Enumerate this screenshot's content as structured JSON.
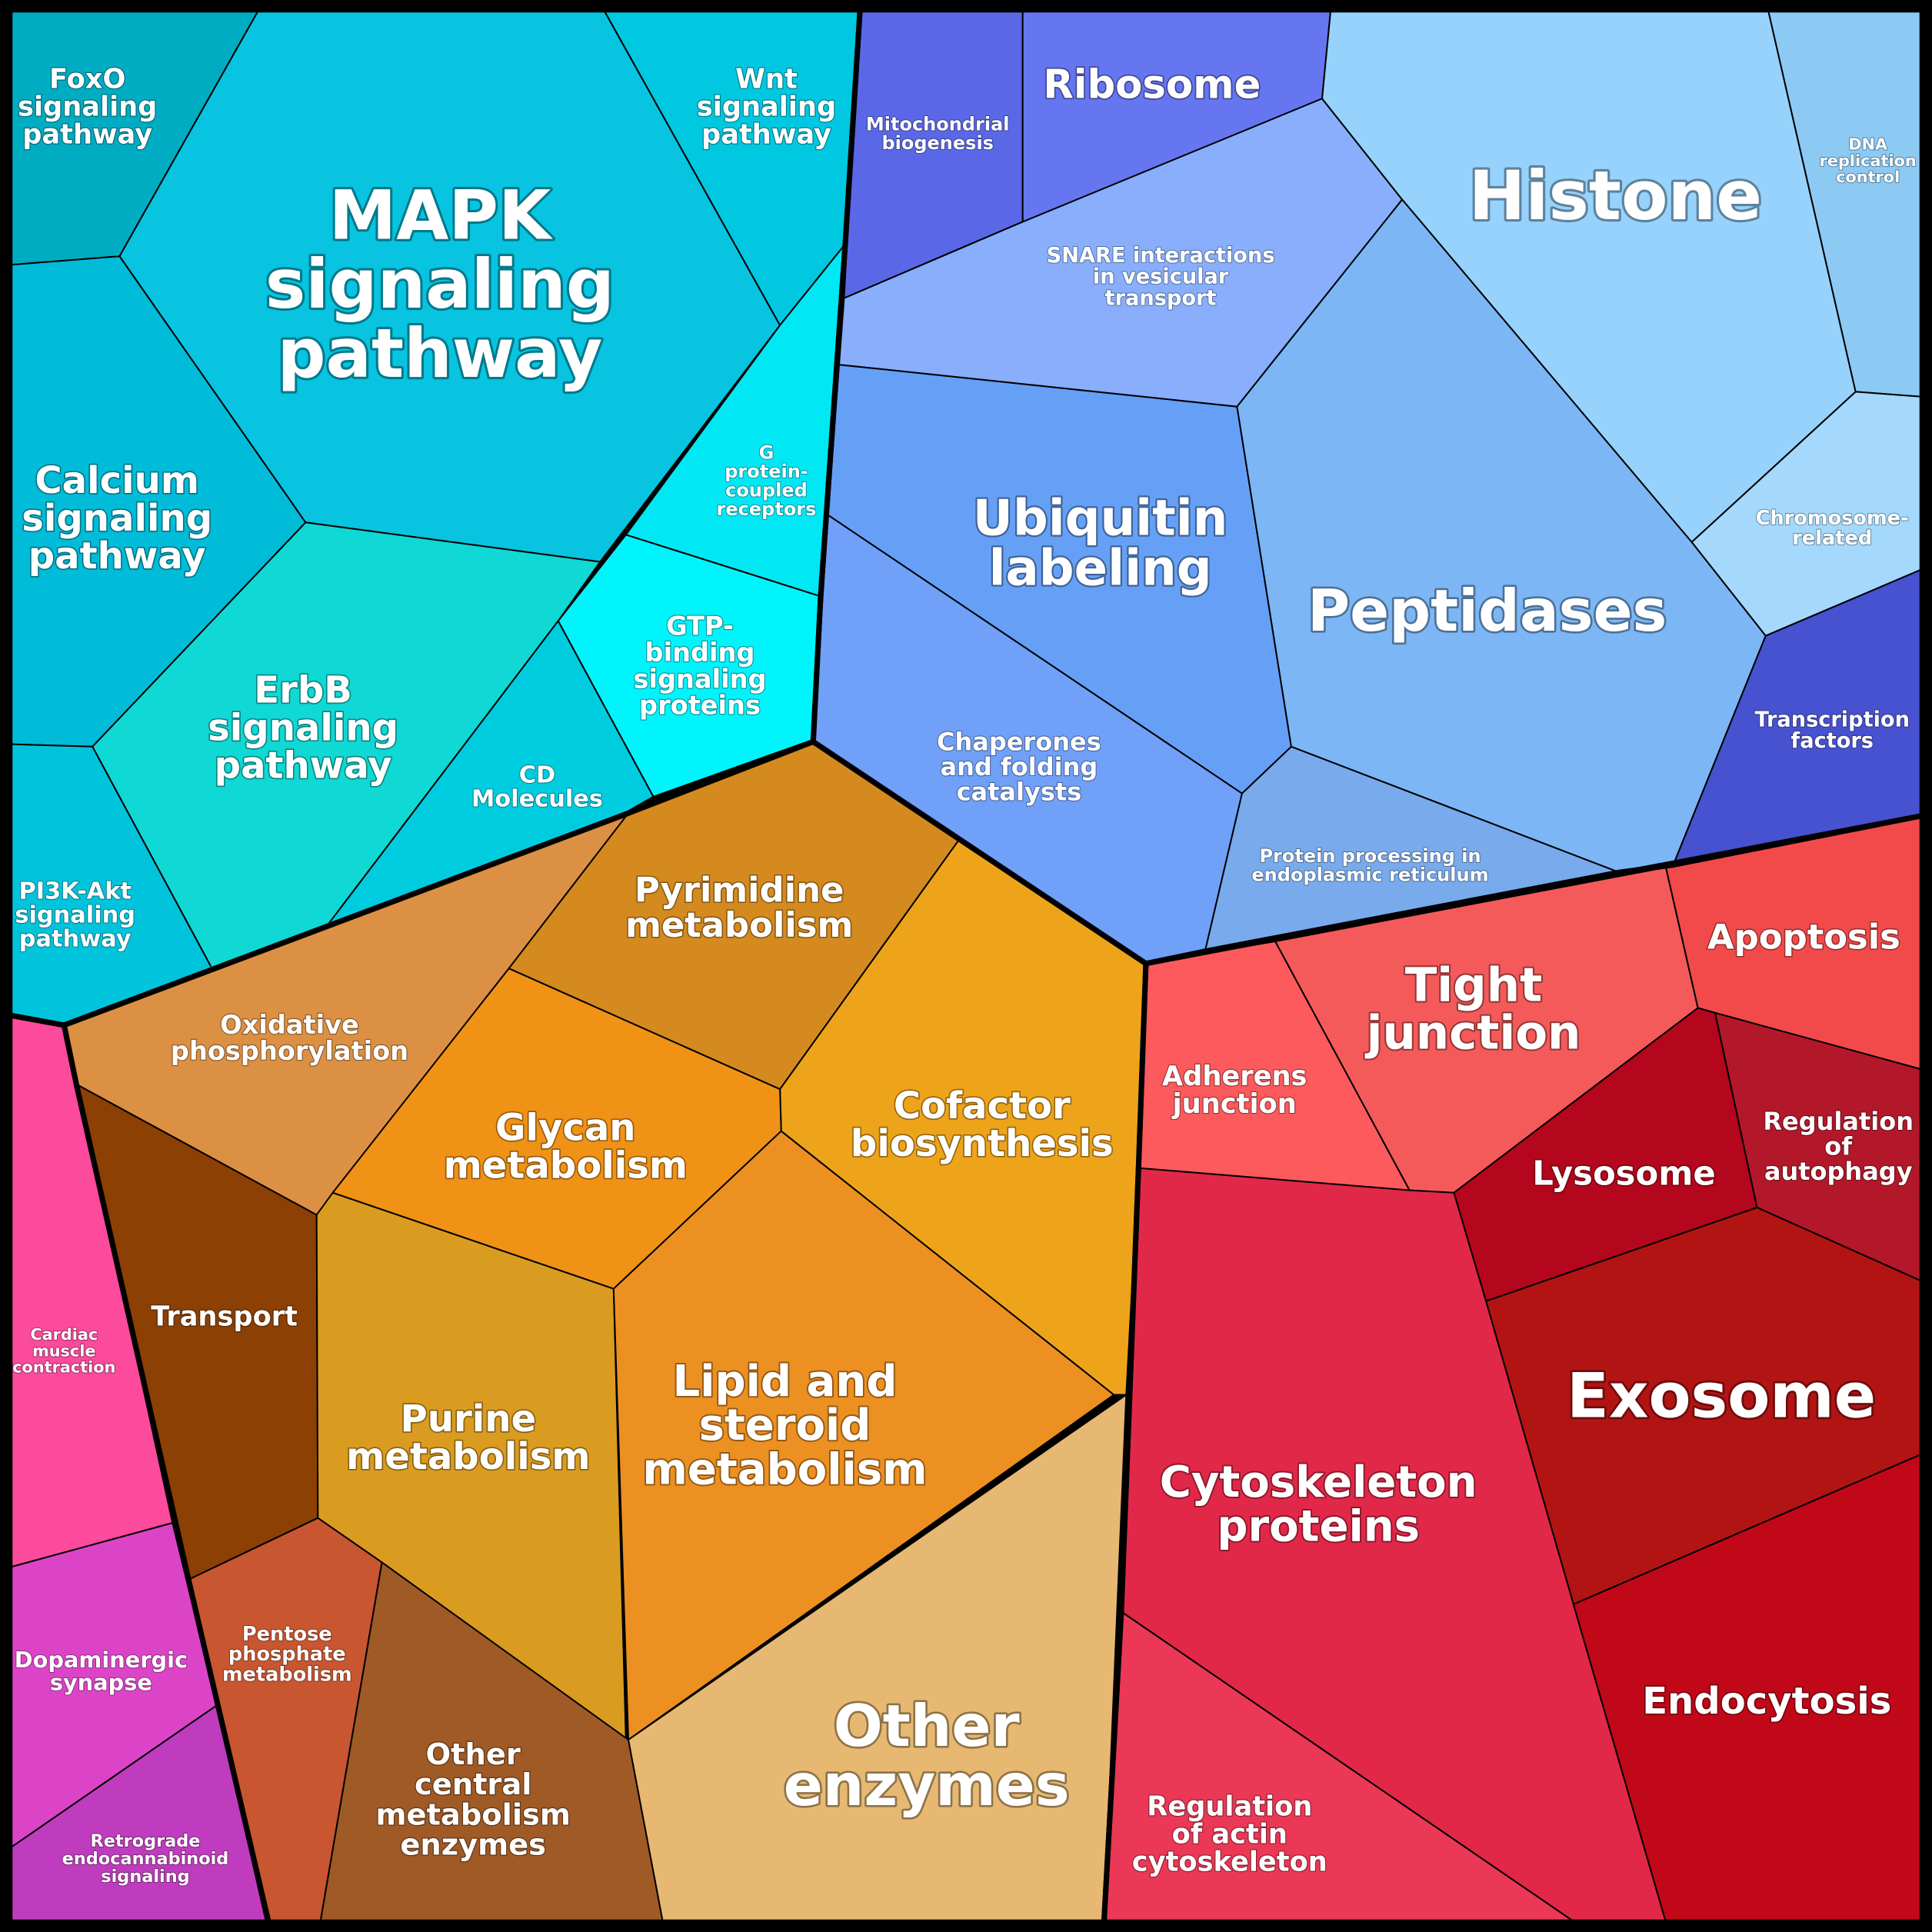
{
  "groups": [
    {
      "id": "signaling",
      "color": "#00bcd4"
    },
    {
      "id": "protein-handling",
      "color": "#6a8ff0"
    },
    {
      "id": "metabolism",
      "color": "#e6951f"
    },
    {
      "id": "cellular-structure",
      "color": "#d8283c"
    },
    {
      "id": "neuro-muscle",
      "color": "#e444a4"
    }
  ],
  "cells": [
    {
      "id": "foxo",
      "group": "signaling",
      "color": "#00acc1",
      "lines": [
        "FoxO",
        "signaling",
        "pathway"
      ]
    },
    {
      "id": "mapk",
      "group": "signaling",
      "color": "#08c4e0",
      "lines": [
        "MAPK",
        "signaling",
        "pathway"
      ]
    },
    {
      "id": "wnt",
      "group": "signaling",
      "color": "#00c8e0",
      "lines": [
        "Wnt",
        "signaling",
        "pathway"
      ]
    },
    {
      "id": "calcium",
      "group": "signaling",
      "color": "#00bcd8",
      "lines": [
        "Calcium",
        "signaling",
        "pathway"
      ]
    },
    {
      "id": "gpcr",
      "group": "signaling",
      "color": "#00e8f4",
      "lines": [
        "G",
        "protein-",
        "coupled",
        "receptors"
      ]
    },
    {
      "id": "gtp",
      "group": "signaling",
      "color": "#00f4fc",
      "lines": [
        "GTP-",
        "binding",
        "signaling",
        "proteins"
      ]
    },
    {
      "id": "erbb",
      "group": "signaling",
      "color": "#10d8d4",
      "lines": [
        "ErbB",
        "signaling",
        "pathway"
      ]
    },
    {
      "id": "cd",
      "group": "signaling",
      "color": "#00cce0",
      "lines": [
        "CD",
        "Molecules"
      ]
    },
    {
      "id": "pi3k",
      "group": "signaling",
      "color": "#00c4dc",
      "lines": [
        "PI3K-Akt",
        "signaling",
        "pathway"
      ]
    },
    {
      "id": "mito",
      "group": "protein-handling",
      "color": "#5a68e8",
      "lines": [
        "Mitochondrial",
        "biogenesis"
      ]
    },
    {
      "id": "ribosome",
      "group": "protein-handling",
      "color": "#6676f0",
      "lines": [
        "Ribosome"
      ]
    },
    {
      "id": "snare",
      "group": "protein-handling",
      "color": "#88aefc",
      "lines": [
        "SNARE interactions",
        "in vesicular",
        "transport"
      ]
    },
    {
      "id": "histone",
      "group": "protein-handling",
      "color": "#96d2fc",
      "lines": [
        "Histone"
      ]
    },
    {
      "id": "dna",
      "group": "protein-handling",
      "color": "#8ccaf4",
      "lines": [
        "DNA",
        "replication",
        "control"
      ]
    },
    {
      "id": "chromosome",
      "group": "protein-handling",
      "color": "#a4d8fc",
      "lines": [
        "Chromosome-",
        "related"
      ]
    },
    {
      "id": "ubiquitin",
      "group": "protein-handling",
      "color": "#66a0f6",
      "lines": [
        "Ubiquitin",
        "labeling"
      ]
    },
    {
      "id": "peptidases",
      "group": "protein-handling",
      "color": "#7cb6f4",
      "lines": [
        "Peptidases"
      ]
    },
    {
      "id": "chaperones",
      "group": "protein-handling",
      "color": "#70a0f8",
      "lines": [
        "Chaperones",
        "and folding",
        "catalysts"
      ]
    },
    {
      "id": "er",
      "group": "protein-handling",
      "color": "#78aaec",
      "lines": [
        "Protein processing in",
        "endoplasmic reticulum"
      ]
    },
    {
      "id": "tf",
      "group": "protein-handling",
      "color": "#4652d0",
      "lines": [
        "Transcription",
        "factors"
      ]
    },
    {
      "id": "oxphos",
      "group": "metabolism",
      "color": "#dc9044",
      "lines": [
        "Oxidative",
        "phosphorylation"
      ]
    },
    {
      "id": "pyrimidine",
      "group": "metabolism",
      "color": "#d48a1e",
      "lines": [
        "Pyrimidine",
        "metabolism"
      ]
    },
    {
      "id": "cofactor",
      "group": "metabolism",
      "color": "#eea41a",
      "lines": [
        "Cofactor",
        "biosynthesis"
      ]
    },
    {
      "id": "glycan",
      "group": "metabolism",
      "color": "#f09216",
      "lines": [
        "Glycan",
        "metabolism"
      ]
    },
    {
      "id": "transport",
      "group": "metabolism",
      "color": "#8c4004",
      "lines": [
        "Transport"
      ]
    },
    {
      "id": "purine",
      "group": "metabolism",
      "color": "#da9c20",
      "lines": [
        "Purine",
        "metabolism"
      ]
    },
    {
      "id": "lipid",
      "group": "metabolism",
      "color": "#ec9022",
      "lines": [
        "Lipid and",
        "steroid",
        "metabolism"
      ]
    },
    {
      "id": "pentose",
      "group": "metabolism",
      "color": "#c85630",
      "lines": [
        "Pentose",
        "phosphate",
        "metabolism"
      ]
    },
    {
      "id": "other-central",
      "group": "metabolism",
      "color": "#a05a26",
      "lines": [
        "Other",
        "central",
        "metabolism",
        "enzymes"
      ]
    },
    {
      "id": "other-enzymes",
      "group": "metabolism",
      "color": "#e6b872",
      "lines": [
        "Other",
        "enzymes"
      ]
    },
    {
      "id": "adherens",
      "group": "cellular-structure",
      "color": "#fc5a5c",
      "lines": [
        "Adherens",
        "junction"
      ]
    },
    {
      "id": "tight",
      "group": "cellular-structure",
      "color": "#f45a5a",
      "lines": [
        "Tight",
        "junction"
      ]
    },
    {
      "id": "apoptosis",
      "group": "cellular-structure",
      "color": "#f24a4a",
      "lines": [
        "Apoptosis"
      ]
    },
    {
      "id": "lysosome",
      "group": "cellular-structure",
      "color": "#b4061c",
      "lines": [
        "Lysosome"
      ]
    },
    {
      "id": "autophagy",
      "group": "cellular-structure",
      "color": "#b2182a",
      "lines": [
        "Regulation",
        "of",
        "autophagy"
      ]
    },
    {
      "id": "exosome",
      "group": "cellular-structure",
      "color": "#b21414",
      "lines": [
        "Exosome"
      ]
    },
    {
      "id": "cytoskeleton",
      "group": "cellular-structure",
      "color": "#e22848",
      "lines": [
        "Cytoskeleton",
        "proteins"
      ]
    },
    {
      "id": "endocytosis",
      "group": "cellular-structure",
      "color": "#c00818",
      "lines": [
        "Endocytosis"
      ]
    },
    {
      "id": "actin",
      "group": "cellular-structure",
      "color": "#ea3856",
      "lines": [
        "Regulation",
        "of actin",
        "cytoskeleton"
      ]
    },
    {
      "id": "cardiac",
      "group": "neuro-muscle",
      "color": "#fc4a9c",
      "lines": [
        "Cardiac",
        "muscle",
        "contraction"
      ]
    },
    {
      "id": "dopaminergic",
      "group": "neuro-muscle",
      "color": "#dc44c8",
      "lines": [
        "Dopaminergic",
        "synapse"
      ]
    },
    {
      "id": "retrograde",
      "group": "neuro-muscle",
      "color": "#c03cbe",
      "lines": [
        "Retrograde",
        "endocannabinoid",
        "signaling"
      ]
    }
  ]
}
